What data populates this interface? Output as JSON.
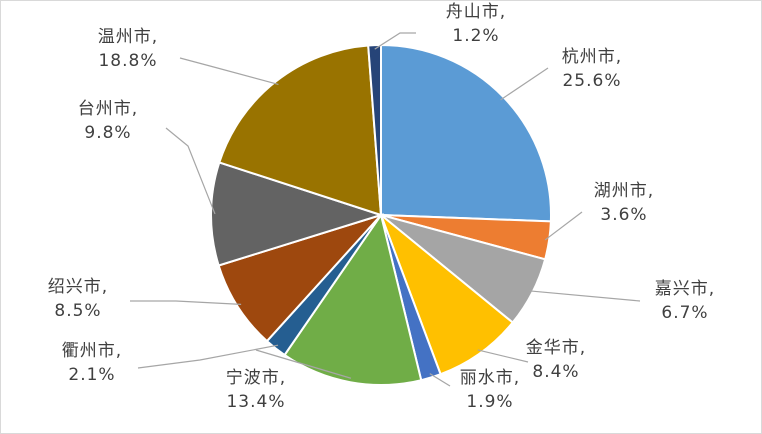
{
  "chart_data": {
    "type": "pie",
    "title": "",
    "slices": [
      {
        "name": "杭州市",
        "value": 25.6,
        "label": "25.6%",
        "color": "#5B9BD5"
      },
      {
        "name": "湖州市",
        "value": 3.6,
        "label": "3.6%",
        "color": "#ED7D31"
      },
      {
        "name": "嘉兴市",
        "value": 6.7,
        "label": "6.7%",
        "color": "#A5A5A5"
      },
      {
        "name": "金华市",
        "value": 8.4,
        "label": "8.4%",
        "color": "#FFC000"
      },
      {
        "name": "丽水市",
        "value": 1.9,
        "label": "1.9%",
        "color": "#4472C4"
      },
      {
        "name": "宁波市",
        "value": 13.4,
        "label": "13.4%",
        "color": "#70AD47"
      },
      {
        "name": "衢州市",
        "value": 2.1,
        "label": "2.1%",
        "color": "#255E91"
      },
      {
        "name": "绍兴市",
        "value": 8.5,
        "label": "8.5%",
        "color": "#9E480E"
      },
      {
        "name": "台州市",
        "value": 9.8,
        "label": "9.8%",
        "color": "#636363"
      },
      {
        "name": "温州市",
        "value": 18.8,
        "label": "18.8%",
        "color": "#997300"
      },
      {
        "name": "舟山市",
        "value": 1.2,
        "label": "1.2%",
        "color": "#264478"
      }
    ],
    "legend": "none",
    "data_labels": "outside with leader lines"
  }
}
